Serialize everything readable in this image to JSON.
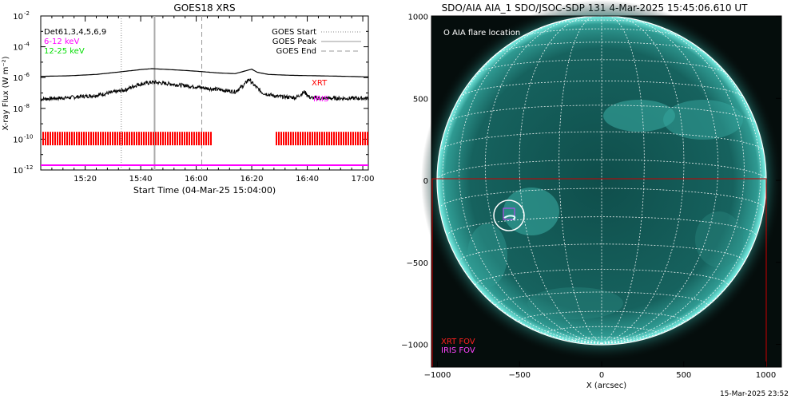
{
  "left_panel": {
    "title": "GOES18 XRS",
    "ylabel": "X-ray Flux (W m⁻²)",
    "xlabel": "Start Time (04-Mar-25 15:04:00)",
    "det_label": "Det61,3,4,5,6,9",
    "band_low": "6-12 keV",
    "band_high": "12-25 keV",
    "legend": {
      "start": "GOES Start",
      "peak": "GOES Peak",
      "end": "GOES End"
    },
    "xrt_label": "XRT",
    "iris_label": "IRIS",
    "yticks": [
      {
        "exp": -2,
        "label": "10",
        "sup": "-2"
      },
      {
        "exp": -4,
        "label": "10",
        "sup": "-4"
      },
      {
        "exp": -6,
        "label": "10",
        "sup": "-6"
      },
      {
        "exp": -8,
        "label": "10",
        "sup": "-8"
      },
      {
        "exp": -10,
        "label": "10",
        "sup": "-10"
      },
      {
        "exp": -12,
        "label": "10",
        "sup": "-12"
      }
    ],
    "xticks": [
      {
        "min": 16,
        "label": "15:20"
      },
      {
        "min": 36,
        "label": "15:40"
      },
      {
        "min": 56,
        "label": "16:00"
      },
      {
        "min": 76,
        "label": "16:20"
      },
      {
        "min": 96,
        "label": "16:40"
      },
      {
        "min": 116,
        "label": "17:00"
      }
    ]
  },
  "right_panel": {
    "title": "SDO/AIA AIA_1 SDO/JSOC-SDP 131  4-Mar-2025 15:45:06.610 UT",
    "xlabel": "X (arcsec)",
    "flare_label": "O AIA flare location",
    "xrt_fov": "XRT FOV",
    "iris_fov": "IRIS FOV",
    "xticks": [
      {
        "v": -1000,
        "label": "−1000"
      },
      {
        "v": -500,
        "label": "−500"
      },
      {
        "v": 0,
        "label": "0"
      },
      {
        "v": 500,
        "label": "500"
      },
      {
        "v": 1000,
        "label": "1000"
      }
    ],
    "yticks": [
      {
        "v": 1000,
        "label": "1000"
      },
      {
        "v": 500,
        "label": "500"
      },
      {
        "v": 0,
        "label": "0"
      },
      {
        "v": -500,
        "label": "−500"
      },
      {
        "v": -1000,
        "label": "−1000"
      }
    ]
  },
  "footer_timestamp": "15-Mar-2025 23:52",
  "colors": {
    "xrt": "#ff0000",
    "iris": "#ff00ff",
    "high_band": "#00dd00",
    "disk": "#1a6f6a",
    "limb": "#5fe8dc"
  },
  "chart_data": [
    {
      "type": "line",
      "title": "GOES18 XRS",
      "xlabel": "Start Time (04-Mar-25 15:04:00)",
      "ylabel": "X-ray Flux (W m⁻²)",
      "y_scale": "log",
      "ylim": [
        1e-12,
        0.01
      ],
      "x_unit": "minutes after 15:04:00",
      "xlim": [
        0,
        118
      ],
      "events": {
        "goes_start": "15:33",
        "goes_peak": "15:45",
        "goes_end": "16:02"
      },
      "series": [
        {
          "name": "6-12 keV",
          "x": [
            0,
            10,
            20,
            30,
            36,
            40,
            48,
            56,
            64,
            70,
            74,
            76,
            78,
            82,
            90,
            100,
            110,
            118
          ],
          "y": [
            1.2e-06,
            1.3e-06,
            1.6e-06,
            2.5e-06,
            3.3e-06,
            3.8e-06,
            3.2e-06,
            2.6e-06,
            2e-06,
            1.8e-06,
            2.8e-06,
            3.5e-06,
            2.2e-06,
            1.6e-06,
            1.4e-06,
            1.3e-06,
            1.2e-06,
            1.1e-06
          ]
        },
        {
          "name": "12-25 keV",
          "x": [
            0,
            10,
            20,
            30,
            35,
            40,
            46,
            52,
            56,
            60,
            66,
            70,
            73,
            75,
            77,
            80,
            85,
            92,
            95,
            97,
            100,
            110,
            118
          ],
          "y": [
            4e-08,
            5e-08,
            7e-08,
            1.5e-07,
            3.5e-07,
            5e-07,
            4e-07,
            3e-07,
            2.5e-07,
            2e-07,
            1.5e-07,
            1.2e-07,
            3e-07,
            8e-07,
            3e-07,
            1e-07,
            6e-08,
            5e-08,
            1.2e-07,
            5e-08,
            4.5e-08,
            4.5e-08,
            4.5e-08
          ]
        }
      ]
    }
  ]
}
